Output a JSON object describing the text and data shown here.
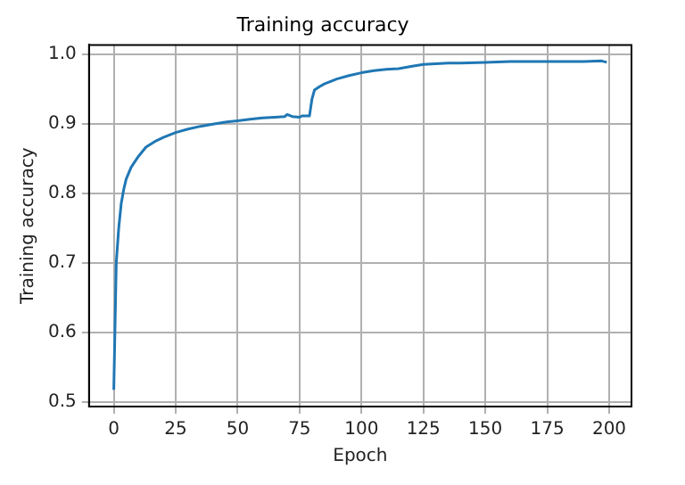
{
  "chart_data": {
    "type": "line",
    "title": "Training accuracy",
    "xlabel": "Epoch",
    "ylabel": "Training accuracy",
    "x": [
      0,
      1,
      2,
      3,
      4,
      5,
      7,
      10,
      13,
      17,
      20,
      25,
      30,
      35,
      40,
      45,
      50,
      55,
      60,
      65,
      69,
      70,
      72,
      75,
      76,
      79,
      80,
      81,
      83,
      85,
      90,
      95,
      100,
      105,
      110,
      115,
      120,
      125,
      130,
      135,
      140,
      150,
      160,
      170,
      180,
      190,
      197,
      199
    ],
    "series": [
      {
        "color": "#1f77b4",
        "values": [
          0.517,
          0.7,
          0.75,
          0.785,
          0.805,
          0.82,
          0.837,
          0.853,
          0.866,
          0.875,
          0.88,
          0.887,
          0.892,
          0.896,
          0.899,
          0.902,
          0.904,
          0.906,
          0.908,
          0.909,
          0.91,
          0.913,
          0.91,
          0.909,
          0.911,
          0.911,
          0.935,
          0.948,
          0.953,
          0.957,
          0.964,
          0.969,
          0.973,
          0.976,
          0.978,
          0.979,
          0.982,
          0.985,
          0.986,
          0.987,
          0.987,
          0.988,
          0.989,
          0.989,
          0.989,
          0.989,
          0.99,
          0.988
        ]
      }
    ],
    "xlim": [
      -10,
      209
    ],
    "xticks": [
      0,
      25,
      50,
      75,
      100,
      125,
      150,
      175,
      200
    ],
    "ylim": [
      0.493,
      1.013
    ],
    "yticks": [
      {
        "value": 0.5,
        "label": "0.5"
      },
      {
        "value": 0.6,
        "label": "0.6"
      },
      {
        "value": 0.7,
        "label": "0.7"
      },
      {
        "value": 0.8,
        "label": "0.8"
      },
      {
        "value": 0.9,
        "label": "0.9"
      },
      {
        "value": 1.0,
        "label": "1.0"
      }
    ],
    "grid": true,
    "legend": false,
    "marker": "none",
    "line_style": "solid"
  }
}
